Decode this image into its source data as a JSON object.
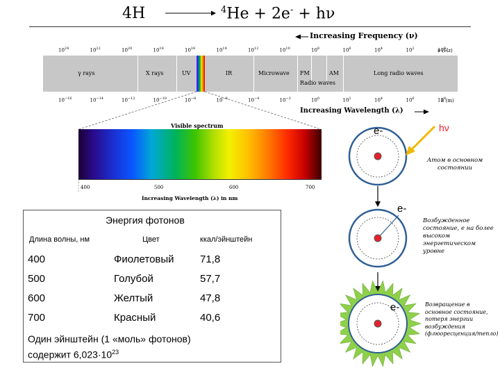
{
  "equation": {
    "lhs": "4H",
    "he_mass": "4",
    "he_symbol": "He",
    "plus": "+",
    "electrons": "2e",
    "e_charge": "-",
    "photon": "hν"
  },
  "em_spectrum": {
    "frequency_title": "Increasing Frequency (ν)",
    "frequency_unit": "ν (Hz)",
    "frequency_ticks": [
      {
        "base": "10",
        "exp": "24"
      },
      {
        "base": "10",
        "exp": "22"
      },
      {
        "base": "10",
        "exp": "20"
      },
      {
        "base": "10",
        "exp": "18"
      },
      {
        "base": "10",
        "exp": "16"
      },
      {
        "base": "10",
        "exp": "14"
      },
      {
        "base": "10",
        "exp": "12"
      },
      {
        "base": "10",
        "exp": "10"
      },
      {
        "base": "10",
        "exp": "8"
      },
      {
        "base": "10",
        "exp": "6"
      },
      {
        "base": "10",
        "exp": "4"
      },
      {
        "base": "10",
        "exp": "2"
      },
      {
        "base": "10",
        "exp": "0"
      }
    ],
    "bands": [
      "γ rays",
      "X rays",
      "UV",
      "IR",
      "Microwave",
      "FM",
      "AM",
      "Long radio waves"
    ],
    "radio_waves": "Radio waves",
    "wavelength_unit": "λ (m)",
    "wavelength_ticks": [
      {
        "base": "10",
        "exp": "−16"
      },
      {
        "base": "10",
        "exp": "−14"
      },
      {
        "base": "10",
        "exp": "−12"
      },
      {
        "base": "10",
        "exp": "−10"
      },
      {
        "base": "10",
        "exp": "−8"
      },
      {
        "base": "10",
        "exp": "−6"
      },
      {
        "base": "10",
        "exp": "−4"
      },
      {
        "base": "10",
        "exp": "−2"
      },
      {
        "base": "10",
        "exp": "0"
      },
      {
        "base": "10",
        "exp": "2"
      },
      {
        "base": "10",
        "exp": "4"
      },
      {
        "base": "10",
        "exp": "6"
      },
      {
        "base": "10",
        "exp": "8"
      }
    ],
    "wavelength_title": "Increasing Wavelength (λ)"
  },
  "visible": {
    "title": "Visible spectrum",
    "ticks": [
      "400",
      "500",
      "600",
      "700"
    ],
    "axis_title": "Increasing Wavelength (λ) in nm"
  },
  "table": {
    "title": "Энергия фотонов",
    "headers": [
      "Длина волны, нм",
      "Цвет",
      "ккал/эйнштейн"
    ],
    "rows": [
      [
        "400",
        "Фиолетовый",
        "71,8"
      ],
      [
        "500",
        "Голубой",
        "57,7"
      ],
      [
        "600",
        "Желтый",
        "47,8"
      ],
      [
        "700",
        "Красный",
        "40,6"
      ]
    ],
    "footer_line1": "Один эйнштейн  (1 «моль» фотонов)",
    "footer_line2_prefix": "содержит 6,023·10",
    "footer_exp": "23"
  },
  "atoms": {
    "electron_label": "e-",
    "photon_label": "hν",
    "ground_caption": "Атом в основном состоянии",
    "excited_caption": "Возбужденное состояние, е на более высоком энергетическом уровне",
    "return_caption": "Возвращение в основное состояние, потеря энергии возбуждения (флюоресценция/тепло)",
    "colors": {
      "nucleus": "#e8202a",
      "orbit": "#2e5e94",
      "photon_arrow": "#f2b800",
      "burst": "#8ed04a"
    }
  }
}
